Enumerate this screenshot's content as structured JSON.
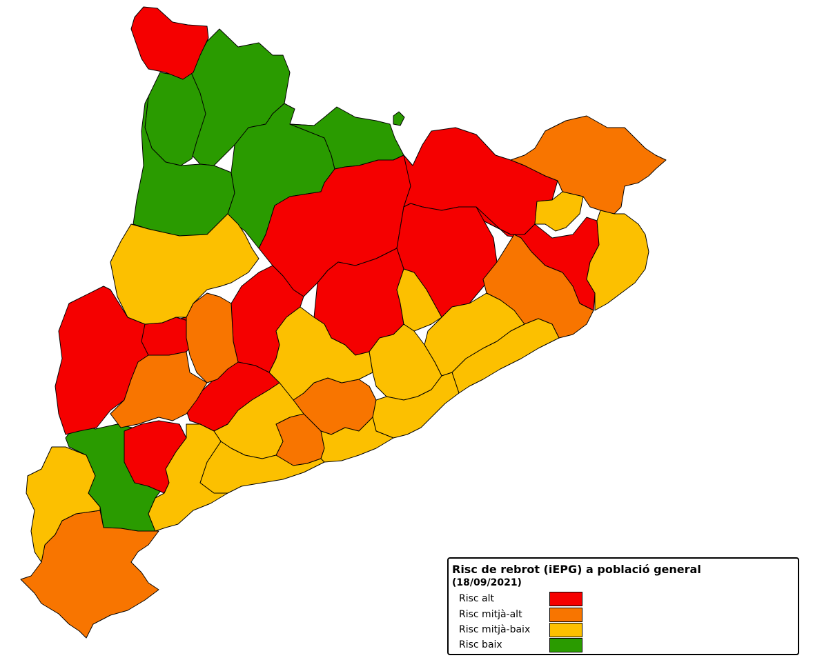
{
  "map": {
    "colors": {
      "alt": "#f50000",
      "mitja_alt": "#f87500",
      "mitja_baix": "#fcc000",
      "baix": "#2a9b00"
    }
  },
  "legend": {
    "title": "Risc de rebrot (iEPG) a població general",
    "subtitle": "(18/09/2021)",
    "items": [
      {
        "label": "Risc alt",
        "color": "#f50000"
      },
      {
        "label": "Risc mitjà-alt",
        "color": "#f87500"
      },
      {
        "label": "Risc mitjà-baix",
        "color": "#fcc000"
      },
      {
        "label": "Risc baix",
        "color": "#2a9b00"
      }
    ]
  }
}
